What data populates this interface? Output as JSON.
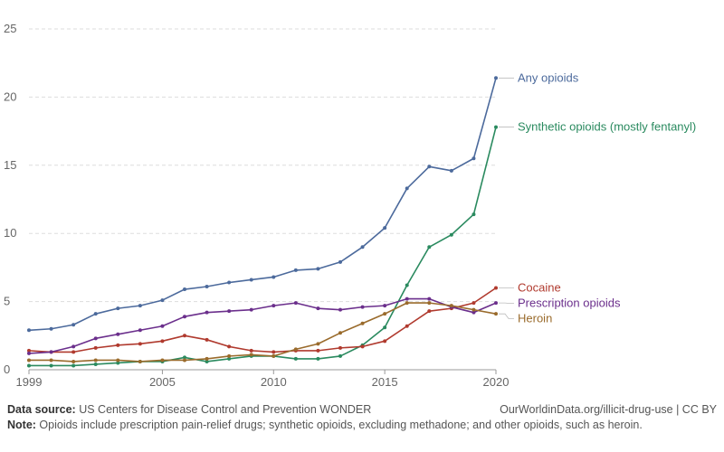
{
  "chart_data": {
    "type": "line",
    "x": [
      1999,
      2000,
      2001,
      2002,
      2003,
      2004,
      2005,
      2006,
      2007,
      2008,
      2009,
      2010,
      2011,
      2012,
      2013,
      2014,
      2015,
      2016,
      2017,
      2018,
      2019,
      2020
    ],
    "ylim": [
      0,
      25
    ],
    "yticks": [
      0,
      5,
      10,
      15,
      20,
      25
    ],
    "xticks": [
      1999,
      2005,
      2010,
      2015,
      2020
    ],
    "grid": "horizontal dashed",
    "legend": "inline labels at line ends (right)",
    "series": [
      {
        "name": "Any opioids",
        "color": "#4c6a9c",
        "values": [
          2.9,
          3.0,
          3.3,
          4.1,
          4.5,
          4.7,
          5.1,
          5.9,
          6.1,
          6.4,
          6.6,
          6.8,
          7.3,
          7.4,
          7.9,
          9.0,
          10.4,
          13.3,
          14.9,
          14.6,
          15.5,
          21.4
        ]
      },
      {
        "name": "Synthetic opioids (mostly fentanyl)",
        "color": "#2a8a5f",
        "values": [
          0.3,
          0.3,
          0.3,
          0.4,
          0.5,
          0.6,
          0.6,
          0.9,
          0.6,
          0.8,
          1.0,
          1.0,
          0.8,
          0.8,
          1.0,
          1.8,
          3.1,
          6.2,
          9.0,
          9.9,
          11.4,
          17.8
        ]
      },
      {
        "name": "Cocaine",
        "color": "#b03a2e",
        "values": [
          1.4,
          1.3,
          1.3,
          1.6,
          1.8,
          1.9,
          2.1,
          2.5,
          2.2,
          1.7,
          1.4,
          1.3,
          1.4,
          1.4,
          1.6,
          1.7,
          2.1,
          3.2,
          4.3,
          4.5,
          4.9,
          6.0
        ]
      },
      {
        "name": "Prescription opioids",
        "color": "#6b2f8c",
        "values": [
          1.2,
          1.3,
          1.7,
          2.3,
          2.6,
          2.9,
          3.2,
          3.9,
          4.2,
          4.3,
          4.4,
          4.7,
          4.9,
          4.5,
          4.4,
          4.6,
          4.7,
          5.2,
          5.2,
          4.6,
          4.2,
          4.9
        ]
      },
      {
        "name": "Heroin",
        "color": "#9a6b2c",
        "values": [
          0.7,
          0.7,
          0.6,
          0.7,
          0.7,
          0.6,
          0.7,
          0.7,
          0.8,
          1.0,
          1.1,
          1.0,
          1.5,
          1.9,
          2.7,
          3.4,
          4.1,
          4.9,
          4.9,
          4.7,
          4.4,
          4.1
        ]
      }
    ]
  },
  "footer": {
    "source_label": "Data source:",
    "source_text": " US Centers for Disease Control and Prevention WONDER",
    "license": "OurWorldinData.org/illicit-drug-use | CC BY",
    "note_label": "Note:",
    "note_text": " Opioids include prescription pain-relief drugs; synthetic opioids, excluding methadone; and other opioids, such as heroin."
  }
}
